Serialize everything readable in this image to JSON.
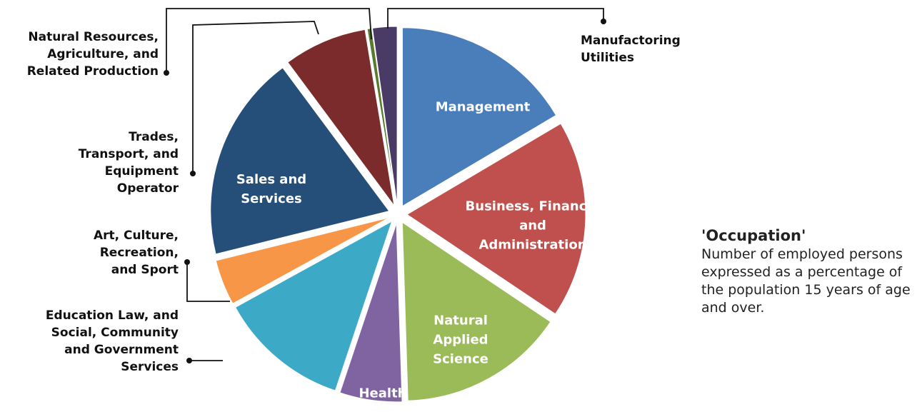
{
  "chart_data": {
    "type": "pie",
    "categories": [
      "Management",
      "Business, Finance, and Administration",
      "Natural Applied Science",
      "Health",
      "Education Law, and Social, Community and Government Services",
      "Art, Culture, Recreation, and Sport",
      "Sales and Services",
      "Trades, Transport, and Equipment Operator",
      "Natural Resources, Agriculture, and Related Production",
      "Manufactoring Utilities"
    ],
    "values": [
      16.4,
      17.8,
      15,
      5.6,
      11.8,
      4.1,
      18.6,
      7.5,
      0.4,
      2.2
    ],
    "colors": [
      "#4a7ebb",
      "#c0504d",
      "#9bbb59",
      "#8064a2",
      "#3caac6",
      "#f79646",
      "#254e78",
      "#7b2b2b",
      "#5a7a2e",
      "#4a3a66"
    ],
    "title": "'Occupation'",
    "subtitle": "Number of employed persons expressed as a percentage of the population 15 years of age and over."
  }
}
